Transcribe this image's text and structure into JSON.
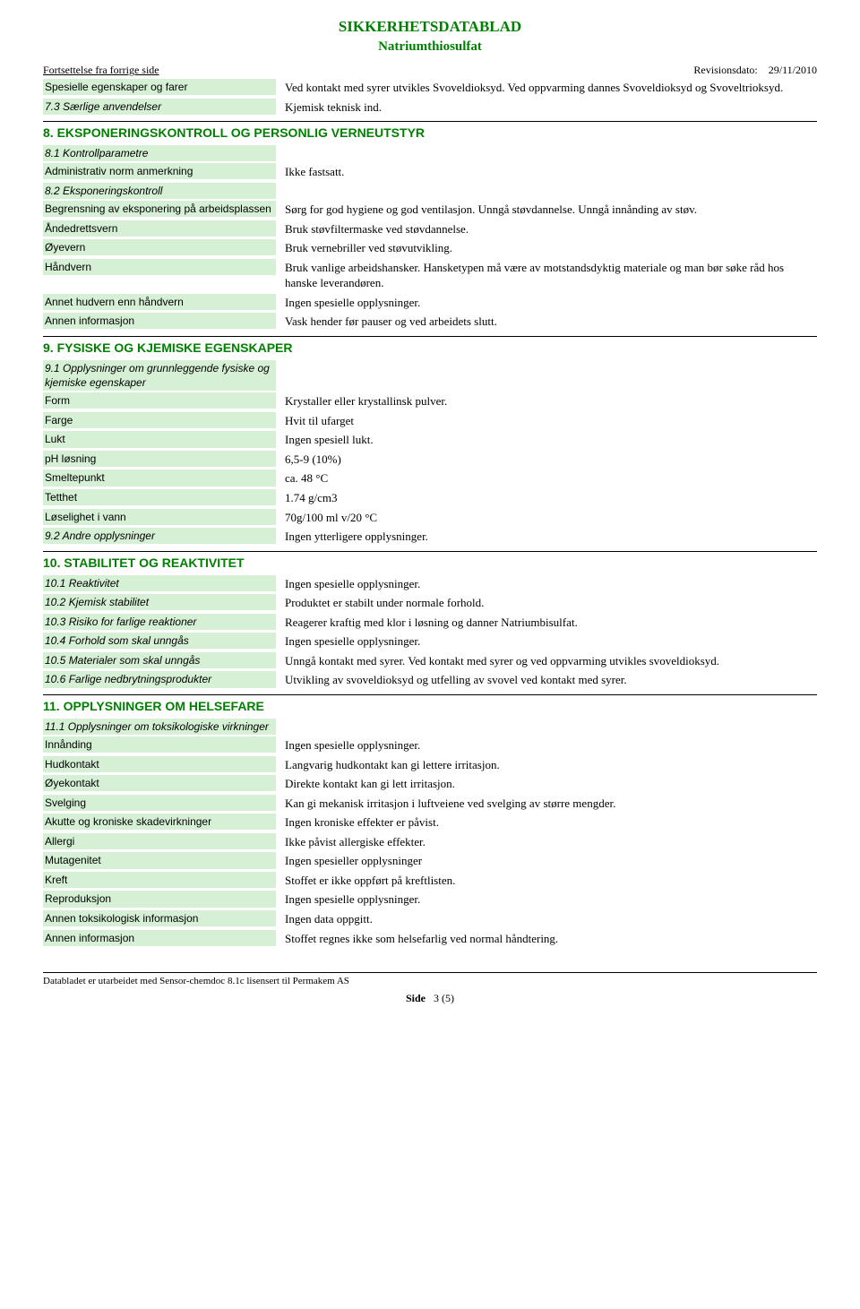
{
  "header": {
    "doc_title": "SIKKERHETSDATABLAD",
    "product_name": "Natriumthiosulfat",
    "continuation": "Fortsettelse fra forrige side",
    "revision_label": "Revisionsdato:",
    "revision_date": "29/11/2010"
  },
  "intro_rows": [
    {
      "label": "Spesielle egenskaper og farer",
      "italic": false,
      "value": "Ved kontakt med syrer utvikles Svoveldioksyd. Ved oppvarming dannes Svoveldioksyd og Svoveltrioksyd."
    },
    {
      "label": "7.3 Særlige anvendelser",
      "italic": true,
      "value": "Kjemisk teknisk ind."
    }
  ],
  "sections": [
    {
      "heading": "8. EKSPONERINGSKONTROLL OG PERSONLIG VERNEUTSTYR",
      "rows": [
        {
          "label": "8.1 Kontrollparametre",
          "italic": true,
          "value": ""
        },
        {
          "label": "Administrativ norm anmerkning",
          "italic": false,
          "value": "Ikke fastsatt."
        },
        {
          "label": "8.2 Eksponeringskontroll",
          "italic": true,
          "value": ""
        },
        {
          "label": "Begrensning av eksponering på arbeidsplassen",
          "italic": false,
          "value": "Sørg for god hygiene og god ventilasjon. Unngå støvdannelse. Unngå innånding av støv."
        },
        {
          "label": "Åndedrettsvern",
          "italic": false,
          "value": "Bruk støvfiltermaske ved støvdannelse."
        },
        {
          "label": "Øyevern",
          "italic": false,
          "value": "Bruk vernebriller ved støvutvikling."
        },
        {
          "label": "Håndvern",
          "italic": false,
          "value": "Bruk vanlige arbeidshansker. Hansketypen må være av motstandsdyktig materiale og man bør søke råd hos hanske leverandøren."
        },
        {
          "label": "Annet hudvern enn håndvern",
          "italic": false,
          "value": "Ingen spesielle opplysninger."
        },
        {
          "label": "Annen informasjon",
          "italic": false,
          "value": "Vask hender før pauser og ved arbeidets slutt."
        }
      ]
    },
    {
      "heading": "9. FYSISKE OG KJEMISKE EGENSKAPER",
      "rows": [
        {
          "label": "9.1 Opplysninger om grunnleggende fysiske og kjemiske egenskaper",
          "italic": true,
          "value": ""
        },
        {
          "label": "Form",
          "italic": false,
          "value": "Krystaller eller krystallinsk pulver."
        },
        {
          "label": "Farge",
          "italic": false,
          "value": "Hvit til ufarget"
        },
        {
          "label": "Lukt",
          "italic": false,
          "value": "Ingen spesiell lukt."
        },
        {
          "label": "pH løsning",
          "italic": false,
          "value": "6,5-9 (10%)"
        },
        {
          "label": "Smeltepunkt",
          "italic": false,
          "value": "ca. 48 °C"
        },
        {
          "label": "Tetthet",
          "italic": false,
          "value": "1.74 g/cm3"
        },
        {
          "label": "Løselighet i vann",
          "italic": false,
          "value": "70g/100 ml v/20 °C"
        },
        {
          "label": "9.2 Andre opplysninger",
          "italic": true,
          "value": "Ingen ytterligere opplysninger."
        }
      ]
    },
    {
      "heading": "10. STABILITET OG REAKTIVITET",
      "rows": [
        {
          "label": "10.1 Reaktivitet",
          "italic": true,
          "value": "Ingen spesielle opplysninger."
        },
        {
          "label": "10.2 Kjemisk stabilitet",
          "italic": true,
          "value": "Produktet er stabilt under normale forhold."
        },
        {
          "label": "10.3 Risiko for farlige reaktioner",
          "italic": true,
          "value": "Reagerer kraftig med klor i løsning og danner Natriumbisulfat."
        },
        {
          "label": "10.4 Forhold som skal unngås",
          "italic": true,
          "value": "Ingen spesielle opplysninger."
        },
        {
          "label": "10.5 Materialer som skal unngås",
          "italic": true,
          "value": "Unngå kontakt med syrer. Ved  kontakt med syrer og ved oppvarming utvikles svoveldioksyd."
        },
        {
          "label": "10.6 Farlige nedbrytningsprodukter",
          "italic": true,
          "value": "Utvikling av svoveldioksyd og utfelling av svovel ved kontakt med syrer."
        }
      ]
    },
    {
      "heading": "11. OPPLYSNINGER OM HELSEFARE",
      "rows": [
        {
          "label": "11.1 Opplysninger om toksikologiske virkninger",
          "italic": true,
          "value": ""
        },
        {
          "label": "Innånding",
          "italic": false,
          "value": "Ingen spesielle opplysninger."
        },
        {
          "label": "Hudkontakt",
          "italic": false,
          "value": "Langvarig hudkontakt kan gi lettere irritasjon."
        },
        {
          "label": "Øyekontakt",
          "italic": false,
          "value": "Direkte kontakt kan gi lett irritasjon."
        },
        {
          "label": "Svelging",
          "italic": false,
          "value": "Kan gi mekanisk irritasjon i luftveiene ved svelging av større mengder."
        },
        {
          "label": "Akutte og kroniske skadevirkninger",
          "italic": false,
          "value": "Ingen kroniske effekter er påvist."
        },
        {
          "label": "Allergi",
          "italic": false,
          "value": "Ikke påvist allergiske effekter."
        },
        {
          "label": "Mutagenitet",
          "italic": false,
          "value": "Ingen spesieller opplysninger"
        },
        {
          "label": "Kreft",
          "italic": false,
          "value": "Stoffet er ikke oppført på kreftlisten."
        },
        {
          "label": "Reproduksjon",
          "italic": false,
          "value": "Ingen spesielle opplysninger."
        },
        {
          "label": "Annen toksikologisk informasjon",
          "italic": false,
          "value": "Ingen data oppgitt."
        },
        {
          "label": "Annen informasjon",
          "italic": false,
          "value": "Stoffet regnes ikke som helsefarlig ved normal håndtering."
        }
      ]
    }
  ],
  "footer": {
    "text": "Databladet er utarbeidet med Sensor-chemdoc 8.1c lisensert til Permakem AS",
    "page_label": "Side",
    "page_num": "3 (5)"
  },
  "colors": {
    "green_text": "#008000",
    "label_bg": "#d6f0d6",
    "divider": "#000000",
    "bg": "#ffffff"
  }
}
